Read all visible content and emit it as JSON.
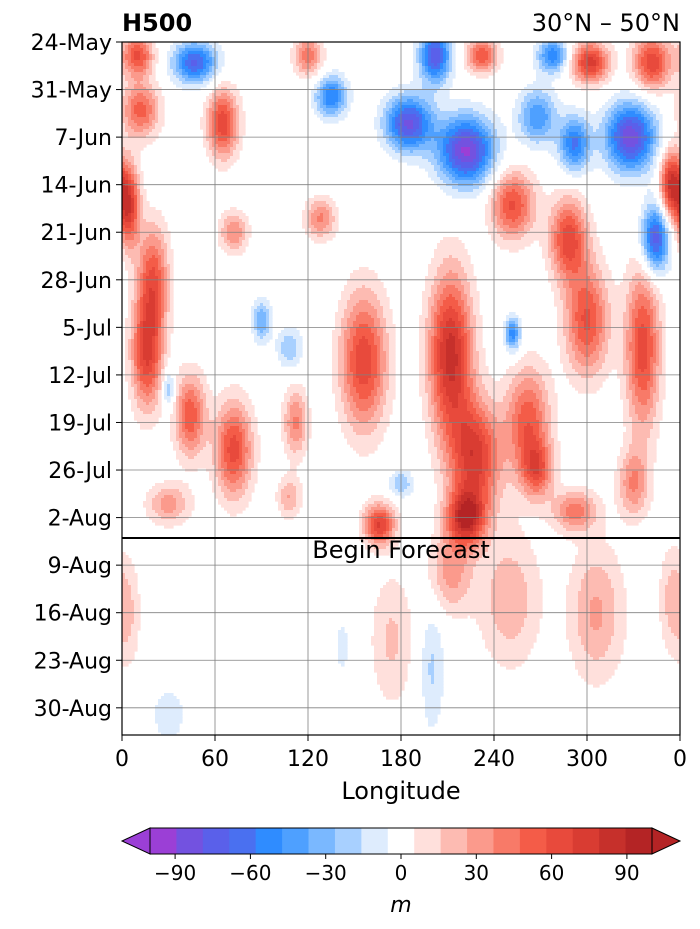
{
  "chart_data": {
    "type": "heatmap",
    "title": "H500",
    "subtitle": "30°N – 50°N",
    "xlabel": "Longitude",
    "ylabel": "",
    "x_ticks": [
      "0",
      "60",
      "120",
      "180",
      "240",
      "300",
      "0"
    ],
    "x_tick_values": [
      0,
      60,
      120,
      180,
      240,
      300,
      360
    ],
    "xlim": [
      0,
      360
    ],
    "y_ticks": [
      "24-May",
      "31-May",
      "7-Jun",
      "14-Jun",
      "21-Jun",
      "28-Jun",
      "5-Jul",
      "12-Jul",
      "19-Jul",
      "26-Jul",
      "2-Aug",
      "9-Aug",
      "16-Aug",
      "23-Aug",
      "30-Aug"
    ],
    "y_tick_days": [
      0,
      7,
      14,
      21,
      28,
      35,
      42,
      49,
      56,
      63,
      70,
      77,
      84,
      91,
      98
    ],
    "ylim_days": [
      0,
      102
    ],
    "grid": true,
    "forecast_line_day": 73,
    "forecast_label": "Begin Forecast",
    "colorbar": {
      "label": "m",
      "levels": [
        -100,
        -90,
        -80,
        -70,
        -60,
        -50,
        -40,
        -30,
        -20,
        -10,
        10,
        20,
        30,
        40,
        50,
        60,
        70,
        80,
        90,
        100
      ],
      "tick_values": [
        -90,
        -60,
        -30,
        0,
        30,
        60,
        90
      ],
      "tick_labels": [
        "−90",
        "−60",
        "−30",
        "0",
        "30",
        "60",
        "90"
      ],
      "colors": [
        "#9b3fd6",
        "#7352e0",
        "#5a60ea",
        "#4a70f0",
        "#2f8cff",
        "#4ea0ff",
        "#7ab8ff",
        "#a8d0ff",
        "#deecfd",
        "#ffffff",
        "#ffe0dc",
        "#fdbbb2",
        "#fb9a8c",
        "#f87a68",
        "#f45c48",
        "#e84a3c",
        "#d93c32",
        "#c6302b",
        "#b42425"
      ],
      "under_color": "#9b3fd6",
      "over_color": "#b42425",
      "extend": "both"
    },
    "features": [
      {
        "lon": 47,
        "day": 3,
        "value": -72,
        "r_lon": 14,
        "r_day": 3
      },
      {
        "lon": 10,
        "day": 2,
        "value": 62,
        "r_lon": 10,
        "r_day": 3
      },
      {
        "lon": 120,
        "day": 2,
        "value": 48,
        "r_lon": 9,
        "r_day": 3
      },
      {
        "lon": 202,
        "day": 2,
        "value": -78,
        "r_lon": 10,
        "r_day": 4
      },
      {
        "lon": 232,
        "day": 2,
        "value": 60,
        "r_lon": 10,
        "r_day": 2.5
      },
      {
        "lon": 278,
        "day": 2,
        "value": -58,
        "r_lon": 10,
        "r_day": 2.5
      },
      {
        "lon": 302,
        "day": 3,
        "value": 75,
        "r_lon": 12,
        "r_day": 3
      },
      {
        "lon": 342,
        "day": 3,
        "value": 68,
        "r_lon": 12,
        "r_day": 4
      },
      {
        "lon": 12,
        "day": 10,
        "value": 55,
        "r_lon": 12,
        "r_day": 4
      },
      {
        "lon": 65,
        "day": 12,
        "value": 68,
        "r_lon": 10,
        "r_day": 5
      },
      {
        "lon": 135,
        "day": 8,
        "value": -60,
        "r_lon": 10,
        "r_day": 3
      },
      {
        "lon": 185,
        "day": 12,
        "value": -82,
        "r_lon": 15,
        "r_day": 4
      },
      {
        "lon": 222,
        "day": 16,
        "value": -92,
        "r_lon": 18,
        "r_day": 5
      },
      {
        "lon": 268,
        "day": 11,
        "value": -50,
        "r_lon": 12,
        "r_day": 4
      },
      {
        "lon": 292,
        "day": 15,
        "value": -62,
        "r_lon": 10,
        "r_day": 4
      },
      {
        "lon": 328,
        "day": 14,
        "value": -88,
        "r_lon": 16,
        "r_day": 5
      },
      {
        "lon": 4,
        "day": 24,
        "value": 80,
        "r_lon": 7,
        "r_day": 6
      },
      {
        "lon": 20,
        "day": 35,
        "value": 58,
        "r_lon": 10,
        "r_day": 8
      },
      {
        "lon": 72,
        "day": 28,
        "value": 40,
        "r_lon": 9,
        "r_day": 3
      },
      {
        "lon": 128,
        "day": 26,
        "value": 42,
        "r_lon": 10,
        "r_day": 3
      },
      {
        "lon": 252,
        "day": 24,
        "value": 62,
        "r_lon": 14,
        "r_day": 5
      },
      {
        "lon": 288,
        "day": 29,
        "value": 66,
        "r_lon": 12,
        "r_day": 6
      },
      {
        "lon": 344,
        "day": 29,
        "value": -80,
        "r_lon": 9,
        "r_day": 5
      },
      {
        "lon": 354,
        "day": 21,
        "value": 80,
        "r_lon": 7,
        "r_day": 5
      },
      {
        "lon": 16,
        "day": 46,
        "value": 68,
        "r_lon": 10,
        "r_day": 8
      },
      {
        "lon": 44,
        "day": 55,
        "value": 58,
        "r_lon": 10,
        "r_day": 6
      },
      {
        "lon": 72,
        "day": 60,
        "value": 65,
        "r_lon": 12,
        "r_day": 7
      },
      {
        "lon": 156,
        "day": 47,
        "value": 68,
        "r_lon": 15,
        "r_day": 10
      },
      {
        "lon": 212,
        "day": 46,
        "value": 85,
        "r_lon": 14,
        "r_day": 12
      },
      {
        "lon": 228,
        "day": 61,
        "value": 74,
        "r_lon": 16,
        "r_day": 8
      },
      {
        "lon": 262,
        "day": 56,
        "value": 58,
        "r_lon": 14,
        "r_day": 8
      },
      {
        "lon": 300,
        "day": 41,
        "value": 62,
        "r_lon": 14,
        "r_day": 8
      },
      {
        "lon": 336,
        "day": 45,
        "value": 66,
        "r_lon": 11,
        "r_day": 12
      },
      {
        "lon": 252,
        "day": 43,
        "value": -58,
        "r_lon": 5,
        "r_day": 2.5
      },
      {
        "lon": 90,
        "day": 41,
        "value": -40,
        "r_lon": 6,
        "r_day": 3
      },
      {
        "lon": 30,
        "day": 51,
        "value": -35,
        "r_lon": 4,
        "r_day": 3
      },
      {
        "lon": 108,
        "day": 45,
        "value": -30,
        "r_lon": 8,
        "r_day": 3
      },
      {
        "lon": 180,
        "day": 65,
        "value": -30,
        "r_lon": 8,
        "r_day": 2
      },
      {
        "lon": 112,
        "day": 56,
        "value": 42,
        "r_lon": 8,
        "r_day": 5
      },
      {
        "lon": 222,
        "day": 70,
        "value": 82,
        "r_lon": 12,
        "r_day": 4
      },
      {
        "lon": 166,
        "day": 71,
        "value": 70,
        "r_lon": 10,
        "r_day": 3
      },
      {
        "lon": 292,
        "day": 69,
        "value": 45,
        "r_lon": 14,
        "r_day": 3
      },
      {
        "lon": 30,
        "day": 68,
        "value": 35,
        "r_lon": 14,
        "r_day": 3
      },
      {
        "lon": 268,
        "day": 63,
        "value": 50,
        "r_lon": 10,
        "r_day": 4
      },
      {
        "lon": 108,
        "day": 67,
        "value": 30,
        "r_lon": 8,
        "r_day": 3
      },
      {
        "lon": 330,
        "day": 65,
        "value": 40,
        "r_lon": 10,
        "r_day": 5
      },
      {
        "lon": 250,
        "day": 82,
        "value": 28,
        "r_lon": 20,
        "r_day": 10
      },
      {
        "lon": 212,
        "day": 78,
        "value": 35,
        "r_lon": 14,
        "r_day": 6
      },
      {
        "lon": 306,
        "day": 84,
        "value": 32,
        "r_lon": 18,
        "r_day": 10
      },
      {
        "lon": 174,
        "day": 88,
        "value": 22,
        "r_lon": 14,
        "r_day": 10
      },
      {
        "lon": 4,
        "day": 84,
        "value": 22,
        "r_lon": 8,
        "r_day": 8
      },
      {
        "lon": 354,
        "day": 82,
        "value": 22,
        "r_lon": 8,
        "r_day": 8
      },
      {
        "lon": 200,
        "day": 92,
        "value": -22,
        "r_lon": 8,
        "r_day": 10
      },
      {
        "lon": 30,
        "day": 99,
        "value": -20,
        "r_lon": 10,
        "r_day": 4
      },
      {
        "lon": 142,
        "day": 89,
        "value": -18,
        "r_lon": 4,
        "r_day": 4
      }
    ]
  }
}
